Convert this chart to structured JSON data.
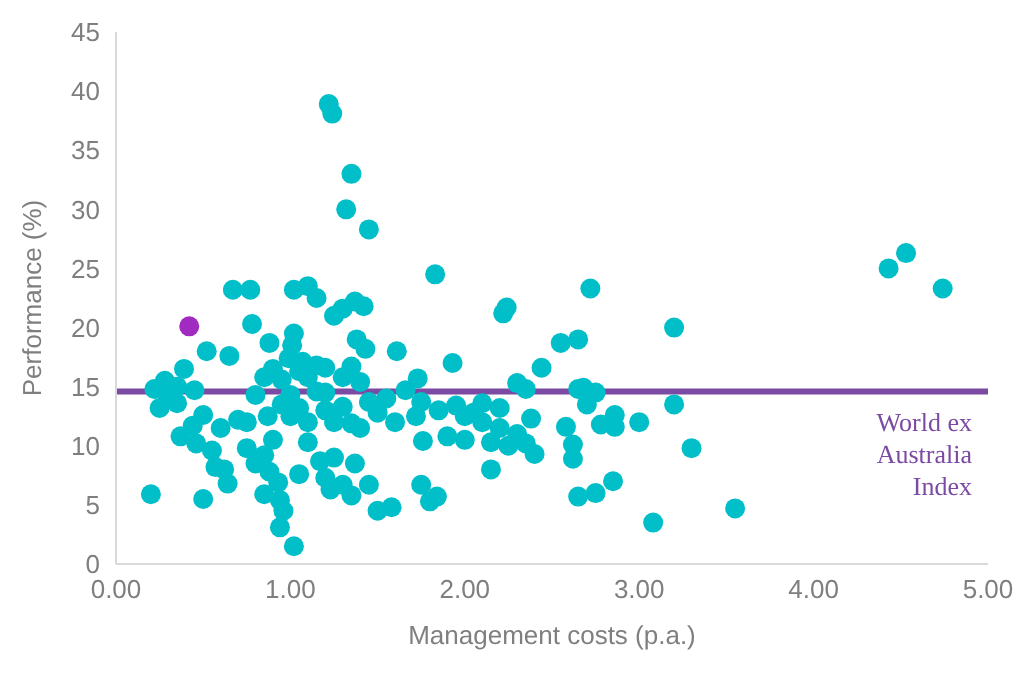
{
  "chart_data": {
    "type": "scatter",
    "xlabel": "Management costs (p.a.)",
    "ylabel": "Performance (%)",
    "xlim": [
      0,
      5
    ],
    "xticks": [
      {
        "value": 0,
        "label": "0.00"
      },
      {
        "value": 1,
        "label": "1.00"
      },
      {
        "value": 2,
        "label": "2.00"
      },
      {
        "value": 3,
        "label": "3.00"
      },
      {
        "value": 4,
        "label": "4.00"
      },
      {
        "value": 5,
        "label": "5.00"
      }
    ],
    "ylim": [
      0,
      45
    ],
    "yticks": [
      0,
      5,
      10,
      15,
      20,
      25,
      30,
      35,
      40,
      45
    ],
    "grid": false,
    "legend": false,
    "marker": "circle",
    "ref_lines": [
      {
        "axis": "y",
        "value": 14.6,
        "label": "World ex Australia Index",
        "color": "#7b4ba3"
      }
    ],
    "series": [
      {
        "color": "#00bfc8",
        "x": [
          1.22,
          1.24,
          1.35,
          1.32,
          1.45,
          1.83,
          0.67,
          0.77,
          1.02,
          1.1,
          1.15,
          1.25,
          1.3,
          1.42,
          1.37,
          0.78,
          0.88,
          1.02,
          1.01,
          0.99,
          1.07,
          1.38,
          1.43,
          1.61,
          0.52,
          0.65,
          0.39,
          0.28,
          0.22,
          0.3,
          0.35,
          0.45,
          0.5,
          0.44,
          0.37,
          0.46,
          0.55,
          0.62,
          0.64,
          0.57,
          0.2,
          0.5,
          0.75,
          0.8,
          0.85,
          0.9,
          0.88,
          0.93,
          0.94,
          0.96,
          0.94,
          1.02,
          0.85,
          1.05,
          1.1,
          1.17,
          1.2,
          1.23,
          1.25,
          1.3,
          1.35,
          1.37,
          1.45,
          1.5,
          1.58,
          1.6,
          1.72,
          1.76,
          1.75,
          1.8,
          1.84,
          1.75,
          1.73,
          1.85,
          1.93,
          1.9,
          2.0,
          2.1,
          2.15,
          2.2,
          2.22,
          2.24,
          2.25,
          2.3,
          2.35,
          2.4,
          2.44,
          2.55,
          2.65,
          2.72,
          2.68,
          2.65,
          2.75,
          2.7,
          2.58,
          2.62,
          2.65,
          2.62,
          2.78,
          2.75,
          2.85,
          2.86,
          2.86,
          3.0,
          3.08,
          3.2,
          3.2,
          3.3,
          3.55,
          4.43,
          4.53,
          4.74,
          2.15,
          2.38,
          2.3,
          2.35,
          2.2,
          2.1,
          2.05,
          1.95,
          2.0,
          1.66,
          1.55,
          1.5,
          1.45,
          1.4,
          1.35,
          1.3,
          1.2,
          1.15,
          1.1,
          1.05,
          0.95,
          0.9,
          0.85,
          0.8,
          0.75,
          0.7,
          0.95,
          1.0,
          1.05,
          1.1,
          1.15,
          1.2,
          1.25,
          1.3,
          1.35,
          1.4,
          1.2,
          1.0,
          0.87,
          0.6,
          0.25,
          0.35
        ],
        "values": [
          38.9,
          38.1,
          33,
          30,
          28.3,
          24.5,
          23.2,
          23.2,
          23.2,
          23.5,
          22.5,
          21,
          21.6,
          21.8,
          22.2,
          20.3,
          18.7,
          19.5,
          18.5,
          17.4,
          17.1,
          19,
          18.2,
          18,
          18,
          17.6,
          16.5,
          15.5,
          14.8,
          14.1,
          13.6,
          14.7,
          12.6,
          11.7,
          10.8,
          10.2,
          9.6,
          8,
          6.8,
          8.2,
          5.9,
          5.5,
          9.8,
          8.5,
          9.2,
          10.5,
          7.8,
          6.9,
          5.4,
          4.5,
          3.1,
          1.5,
          5.9,
          7.6,
          10.3,
          8.7,
          7.3,
          6.3,
          9,
          6.7,
          5.8,
          8.5,
          6.7,
          4.5,
          4.8,
          12,
          12.5,
          10.4,
          6.7,
          5.3,
          5.7,
          13.7,
          15.7,
          13,
          17,
          10.8,
          10.5,
          12,
          10.3,
          11.5,
          21.2,
          21.7,
          10,
          11,
          10.2,
          9.3,
          16.6,
          18.7,
          19,
          23.3,
          14.9,
          14.8,
          14.5,
          13.5,
          11.6,
          8.9,
          5.7,
          10.1,
          11.8,
          6,
          7,
          12.6,
          11.6,
          12,
          3.5,
          20,
          13.5,
          9.8,
          4.7,
          25,
          26.3,
          23.3,
          8,
          12.3,
          15.3,
          14.8,
          13.2,
          13.6,
          12.8,
          13.4,
          12.5,
          14.7,
          14,
          12.8,
          13.7,
          15.4,
          16.7,
          15.8,
          16.6,
          16.8,
          15.8,
          16.3,
          15.6,
          16.5,
          15.8,
          14.3,
          12,
          12.2,
          13.5,
          12.5,
          13.2,
          12,
          14.6,
          13,
          12,
          13.3,
          11.9,
          11.5,
          14.5,
          14.3,
          12.5,
          11.5,
          13.2,
          15
        ]
      },
      {
        "color": "#a12bc0",
        "x": [
          0.42
        ],
        "values": [
          20.1
        ]
      }
    ]
  }
}
